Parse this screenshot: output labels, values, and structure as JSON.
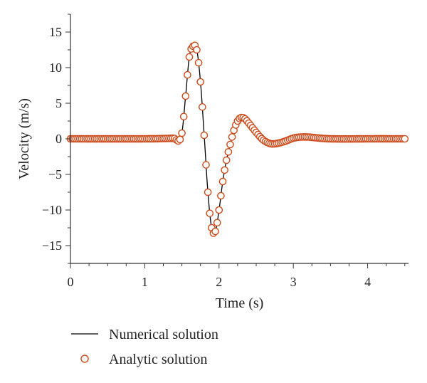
{
  "chart_data": {
    "type": "line",
    "title": "",
    "xlabel": "Time (s)",
    "ylabel": "Velocity (m/s)",
    "xlim": [
      0,
      4.55
    ],
    "ylim": [
      -17.5,
      17.5
    ],
    "xticks": [
      0,
      1,
      2,
      3,
      4
    ],
    "yticks": [
      -15,
      -10,
      -5,
      0,
      5,
      10,
      15
    ],
    "grid": false,
    "legend_position": "bottom-left",
    "series": [
      {
        "name": "Numerical solution",
        "style": "line",
        "color": "#000000",
        "x": [
          0,
          1.0,
          1.3,
          1.4,
          1.45,
          1.5,
          1.55,
          1.6,
          1.65,
          1.7,
          1.75,
          1.8,
          1.85,
          1.9,
          1.95,
          2.0,
          2.05,
          2.1,
          2.15,
          2.2,
          2.25,
          2.3,
          2.35,
          2.4,
          2.5,
          2.6,
          2.7,
          2.8,
          2.9,
          3.0,
          3.1,
          3.2,
          3.3,
          3.4,
          3.5,
          3.7,
          4.0,
          4.5
        ],
        "y": [
          0,
          0,
          0.05,
          0.05,
          -0.3,
          0.8,
          6.0,
          11.5,
          13.0,
          12.5,
          8.0,
          0.5,
          -7.5,
          -12.5,
          -13.0,
          -10.0,
          -6.0,
          -3.0,
          -0.8,
          1.2,
          2.5,
          3.0,
          2.8,
          2.2,
          0.9,
          -0.2,
          -0.7,
          -0.6,
          -0.3,
          0.1,
          0.25,
          0.25,
          0.15,
          0.05,
          0.0,
          -0.02,
          0.0,
          0.0
        ]
      },
      {
        "name": "Analytic solution",
        "style": "markers",
        "marker": "open-circle",
        "color": "#cc4a1a",
        "x": [
          0,
          1.0,
          1.3,
          1.4,
          1.45,
          1.5,
          1.55,
          1.6,
          1.65,
          1.7,
          1.75,
          1.8,
          1.85,
          1.9,
          1.95,
          2.0,
          2.05,
          2.1,
          2.15,
          2.2,
          2.25,
          2.3,
          2.35,
          2.4,
          2.5,
          2.6,
          2.7,
          2.8,
          2.9,
          3.0,
          3.1,
          3.2,
          3.3,
          3.4,
          3.5,
          3.7,
          4.0,
          4.5
        ],
        "y": [
          0,
          0,
          0.05,
          0.05,
          -0.3,
          0.8,
          6.0,
          11.5,
          13.0,
          12.5,
          8.0,
          0.5,
          -7.5,
          -12.5,
          -13.0,
          -10.0,
          -6.0,
          -3.0,
          -0.8,
          1.2,
          2.5,
          3.0,
          2.8,
          2.2,
          0.9,
          -0.2,
          -0.7,
          -0.6,
          -0.3,
          0.1,
          0.25,
          0.25,
          0.15,
          0.05,
          0.0,
          -0.02,
          0.0,
          0.0
        ]
      }
    ]
  }
}
